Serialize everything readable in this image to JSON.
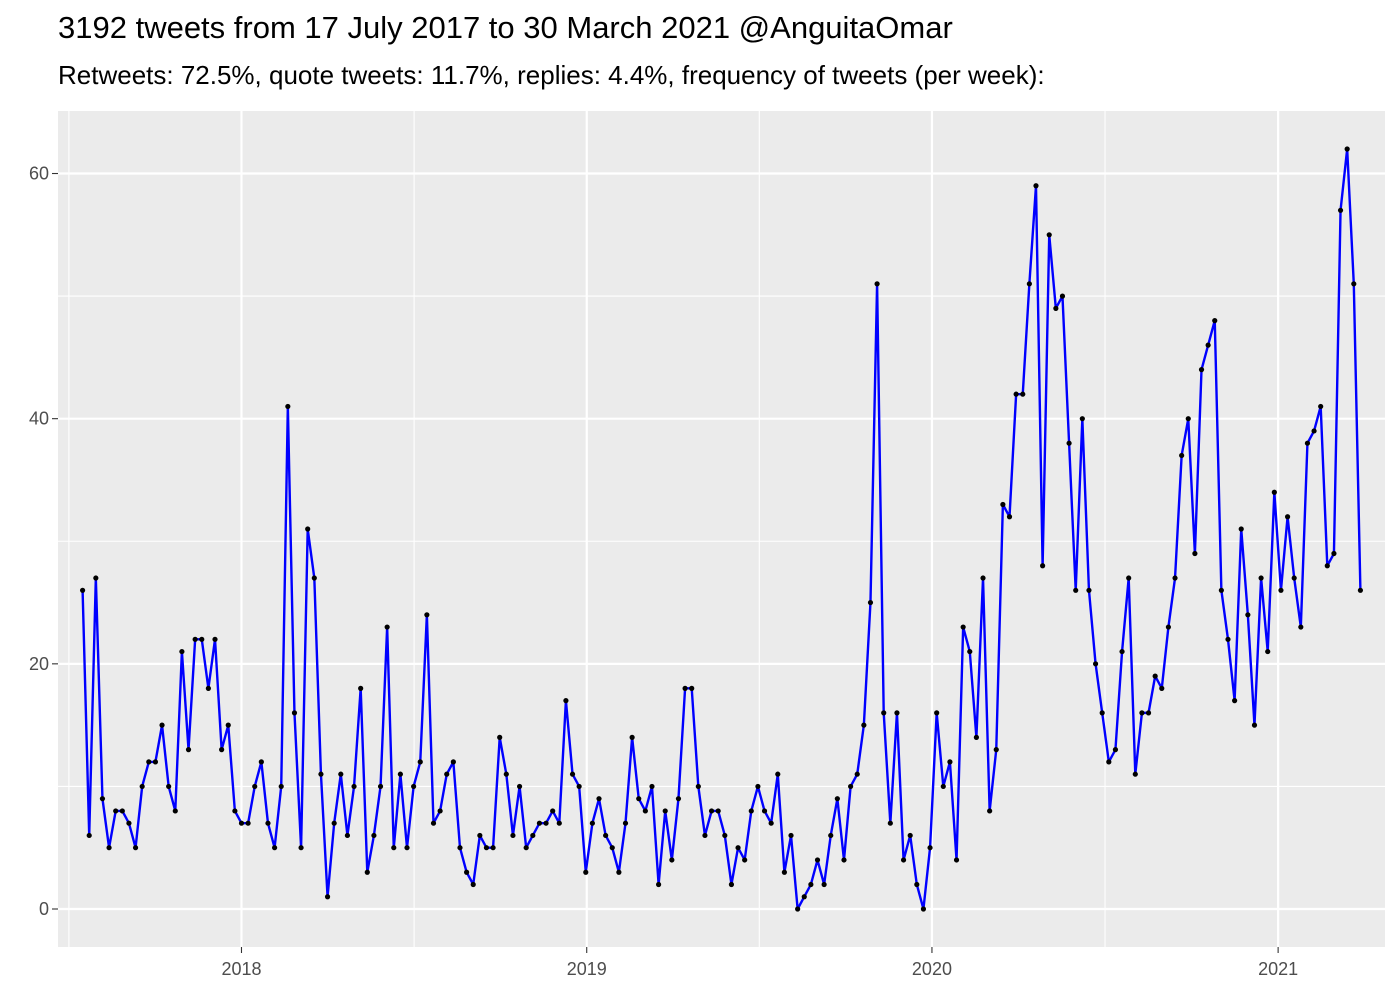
{
  "chart_data": {
    "type": "line",
    "title": "3192 tweets from 17 July 2017 to 30 March 2021 @AnguitaOmar",
    "subtitle": "Retweets: 72.5%, quote tweets: 11.7%, replies: 4.4%, frequency of tweets (per week):",
    "xlabel": "",
    "ylabel": "",
    "x_start": "2017-07-17",
    "x_step_days": 7,
    "xlim": [
      "2017-06-21",
      "2021-04-24"
    ],
    "ylim": [
      -3.1,
      65.1
    ],
    "x_ticks": [
      {
        "date": "2018-01-01",
        "label": "2018"
      },
      {
        "date": "2019-01-01",
        "label": "2019"
      },
      {
        "date": "2020-01-01",
        "label": "2020"
      },
      {
        "date": "2021-01-01",
        "label": "2021"
      }
    ],
    "y_ticks": [
      0,
      20,
      40,
      60
    ],
    "grid": true,
    "panel_background": "#ebebeb",
    "grid_color": "#ffffff",
    "line_color": "#0000ff",
    "point_color": "#000000",
    "series": [
      {
        "values": [
          26,
          6,
          27,
          9,
          5,
          8,
          8,
          7,
          5,
          10,
          12,
          12,
          15,
          10,
          8,
          21,
          13,
          22,
          22,
          18,
          22,
          13,
          15,
          8,
          7,
          7,
          10,
          12,
          7,
          5,
          10,
          41,
          16,
          5,
          31,
          27,
          11,
          1,
          7,
          11,
          6,
          10,
          18,
          3,
          6,
          10,
          23,
          5,
          11,
          5,
          10,
          12,
          24,
          7,
          8,
          11,
          12,
          5,
          3,
          2,
          6,
          5,
          5,
          14,
          11,
          6,
          10,
          5,
          6,
          7,
          7,
          8,
          7,
          17,
          11,
          10,
          3,
          7,
          9,
          6,
          5,
          3,
          7,
          14,
          9,
          8,
          10,
          2,
          8,
          4,
          9,
          18,
          18,
          10,
          6,
          8,
          8,
          6,
          2,
          5,
          4,
          8,
          10,
          8,
          7,
          11,
          3,
          6,
          0,
          1,
          2,
          4,
          2,
          6,
          9,
          4,
          10,
          11,
          15,
          25,
          51,
          16,
          7,
          16,
          4,
          6,
          2,
          0,
          5,
          16,
          10,
          12,
          4,
          23,
          21,
          14,
          27,
          8,
          13,
          33,
          32,
          42,
          42,
          51,
          59,
          28,
          55,
          49,
          50,
          38,
          26,
          40,
          26,
          20,
          16,
          12,
          13,
          21,
          27,
          11,
          16,
          16,
          19,
          18,
          23,
          27,
          37,
          40,
          29,
          44,
          46,
          48,
          26,
          22,
          17,
          31,
          24,
          15,
          27,
          21,
          34,
          26,
          32,
          27,
          23,
          38,
          39,
          41,
          28,
          29,
          57,
          62,
          51,
          26
        ]
      }
    ]
  }
}
